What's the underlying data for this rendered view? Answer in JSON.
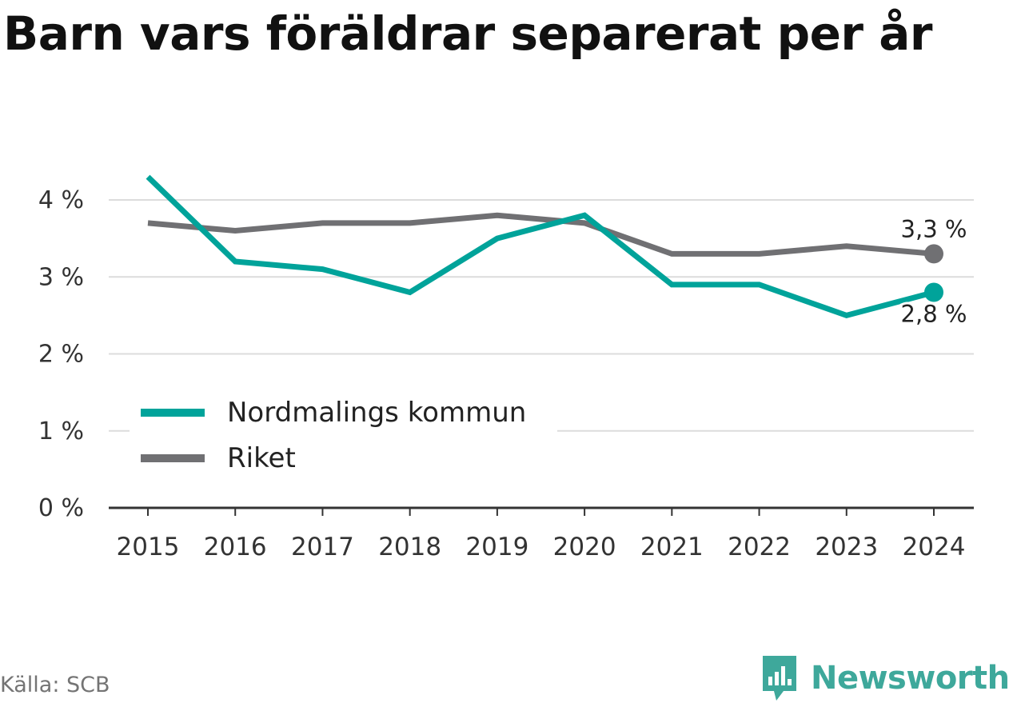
{
  "title": "Barn vars föräldrar separerat per år",
  "source": "Källa: SCB",
  "brand": {
    "name": "Newsworthy",
    "icon": "newsworthy-logo-icon",
    "color": "#3ea89b"
  },
  "chart_data": {
    "type": "line",
    "x": [
      "2015",
      "2016",
      "2017",
      "2018",
      "2019",
      "2020",
      "2021",
      "2022",
      "2023",
      "2024"
    ],
    "series": [
      {
        "name": "Nordmalings kommun",
        "color": "#00a39a",
        "values": [
          4.3,
          3.2,
          3.1,
          2.8,
          3.5,
          3.8,
          2.9,
          2.9,
          2.5,
          2.8
        ],
        "end_label": "2,8 %"
      },
      {
        "name": "Riket",
        "color": "#707073",
        "values": [
          3.7,
          3.6,
          3.7,
          3.7,
          3.8,
          3.7,
          3.3,
          3.3,
          3.4,
          3.3
        ],
        "end_label": "3,3 %"
      }
    ],
    "ylim": [
      0,
      4
    ],
    "yticks": [
      0,
      1,
      2,
      3,
      4
    ],
    "ytick_labels": [
      "0 %",
      "1 %",
      "2 %",
      "3 %",
      "4 %"
    ],
    "grid": true,
    "legend": "bottom-left",
    "xlabel": "",
    "ylabel": ""
  }
}
